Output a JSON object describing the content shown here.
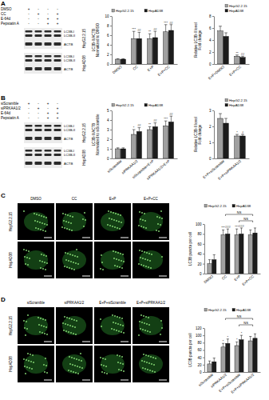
{
  "panels": [
    "A",
    "B",
    "C",
    "D"
  ],
  "blots": [
    {
      "conditions": [
        {
          "name": "DMSO",
          "signs": [
            "+",
            "-",
            "-",
            "-"
          ]
        },
        {
          "name": "CC",
          "signs": [
            "-",
            "+",
            "-",
            "+"
          ]
        },
        {
          "name": "E-64d",
          "signs": [
            "-",
            "-",
            "+",
            "+"
          ]
        },
        {
          "name": "Pepstatin A",
          "signs": [
            "-",
            "-",
            "+",
            "+"
          ]
        }
      ],
      "cells": [
        {
          "name": "HepG2.2.15",
          "bands": [
            "LC3B-I",
            "LC3B-II",
            "ACTB"
          ]
        },
        {
          "name": "HepAD38",
          "bands": [
            "LC3B-I",
            "LC3B-II",
            "ACTB"
          ]
        }
      ]
    },
    {
      "conditions": [
        {
          "name": "siScramble",
          "signs": [
            "+",
            "-",
            "+",
            "-"
          ]
        },
        {
          "name": "siPRKAA1/2",
          "signs": [
            "-",
            "+",
            "-",
            "+"
          ]
        },
        {
          "name": "E-64d",
          "signs": [
            "-",
            "-",
            "+",
            "+"
          ]
        },
        {
          "name": "Pepstatin A",
          "signs": [
            "-",
            "-",
            "+",
            "+"
          ]
        }
      ],
      "cells": [
        {
          "name": "HepG2.2.15",
          "bands": [
            "LC3B-I",
            "LC3B-II",
            "ACTB"
          ]
        },
        {
          "name": "HepAD38",
          "bands": [
            "LC3B-I",
            "LC3B-II",
            "ACTB"
          ]
        }
      ]
    }
  ],
  "micrographs": [
    {
      "columns": [
        "DMSO",
        "CC",
        "E+P",
        "E+P+CC"
      ],
      "rows": [
        "HepG2.2.15",
        "HepAD38"
      ]
    },
    {
      "columns": [
        "siScramble",
        "siPRKAA1/2",
        "E+P+siScramble",
        "E+P+siPRKAA1/2"
      ],
      "rows": [
        "HepG2.2.15",
        "HepAD38"
      ]
    }
  ],
  "chart_data": [
    {
      "type": "bar",
      "categories": [
        "DMSO",
        "CC",
        "E+P",
        "E+P+CC"
      ],
      "ylabel": [
        "LC3B-II/ACTB",
        "Normalized to DMSO"
      ],
      "ylim": [
        0,
        10
      ],
      "yticks": [
        0,
        2,
        4,
        6,
        8,
        10
      ],
      "legend": "top",
      "series": [
        {
          "name": "HepG2.2.15",
          "color": "#a0a0a0",
          "values": [
            1,
            5.3,
            5.3,
            6.7
          ],
          "errors": [
            0.1,
            1.5,
            1.0,
            1.5
          ]
        },
        {
          "name": "HepAD38",
          "color": "#1c1c1c",
          "values": [
            1,
            5.3,
            5.5,
            7.0
          ],
          "errors": [
            0.1,
            1.3,
            1.3,
            1.2
          ]
        }
      ],
      "annotations": [
        {
          "text": "***",
          "category": 1,
          "series": 0
        },
        {
          "text": "##",
          "category": 1,
          "series": 1
        },
        {
          "text": "**",
          "category": 2,
          "series": 0
        },
        {
          "text": "##",
          "category": 2,
          "series": 1
        },
        {
          "text": "***",
          "category": 3,
          "series": 0
        },
        {
          "text": "##",
          "category": 3,
          "series": 1
        }
      ]
    },
    {
      "type": "bar",
      "categories": [
        "E+P+DMSO",
        "E+P+CC"
      ],
      "ylabel": [
        "Relative LC3B-II level",
        "Fold change"
      ],
      "ylim": [
        0,
        8
      ],
      "yticks": [
        0,
        2,
        4,
        6,
        8
      ],
      "legend": "top",
      "series": [
        {
          "name": "HepG2.2.15",
          "color": "#a0a0a0",
          "values": [
            5.5,
            1.3
          ],
          "errors": [
            0.8,
            0.2
          ]
        },
        {
          "name": "HepAD38",
          "color": "#1c1c1c",
          "values": [
            4.6,
            1.1
          ],
          "errors": [
            0.6,
            0.2
          ]
        }
      ],
      "annotations": [
        {
          "text": "**",
          "category": 1,
          "series": 0
        },
        {
          "text": "##",
          "category": 1,
          "series": 1
        }
      ]
    },
    {
      "type": "bar",
      "categories": [
        "siScramble",
        "siPRKAA1/2",
        "siScramble+E+P",
        "siPRKAA1/2+E+P"
      ],
      "ylabel": [
        "LC3B-II/ACTB",
        "Normalized to siScramble"
      ],
      "ylim": [
        0,
        5
      ],
      "yticks": [
        0,
        1,
        2,
        3,
        4,
        5
      ],
      "legend": "top",
      "series": [
        {
          "name": "HepG2.2.15",
          "color": "#a0a0a0",
          "values": [
            1,
            2.5,
            3.0,
            3.4
          ],
          "errors": [
            0.1,
            0.5,
            0.3,
            0.5
          ]
        },
        {
          "name": "HepAD38",
          "color": "#1c1c1c",
          "values": [
            1,
            2.8,
            3.3,
            3.8
          ],
          "errors": [
            0.1,
            0.4,
            0.4,
            0.6
          ]
        }
      ],
      "annotations": [
        {
          "text": "*",
          "category": 1,
          "series": 0
        },
        {
          "text": "##",
          "category": 1,
          "series": 1
        },
        {
          "text": "**",
          "category": 2,
          "series": 0
        },
        {
          "text": "##",
          "category": 2,
          "series": 1
        },
        {
          "text": "***",
          "category": 3,
          "series": 0
        },
        {
          "text": "##",
          "category": 3,
          "series": 1
        }
      ]
    },
    {
      "type": "bar",
      "categories": [
        "E+P+siScramble",
        "E+P+siPRKAA1/2"
      ],
      "ylabel": [
        "Relative LC3B-II level",
        "Fold change"
      ],
      "ylim": [
        0,
        3
      ],
      "yticks": [
        0,
        1,
        2,
        3
      ],
      "legend": "top",
      "series": [
        {
          "name": "HepG2.2.15",
          "color": "#a0a0a0",
          "values": [
            2.5,
            1.4
          ],
          "errors": [
            0.3,
            0.1
          ]
        },
        {
          "name": "HepAD38",
          "color": "#1c1c1c",
          "values": [
            2.2,
            1.4
          ],
          "errors": [
            0.3,
            0.1
          ]
        }
      ],
      "annotations": [
        {
          "text": "*",
          "category": 1,
          "series": 0
        },
        {
          "text": "#",
          "category": 1,
          "series": 1
        }
      ]
    },
    {
      "type": "bar",
      "categories": [
        "DMSO",
        "CC",
        "E+P",
        "E+P+CC"
      ],
      "ylabel": [
        "LC3B puncta per cell"
      ],
      "ylim": [
        0,
        100
      ],
      "yticks": [
        0,
        20,
        40,
        60,
        80,
        100
      ],
      "legend": "top",
      "series": [
        {
          "name": "HepG2.2.15",
          "color": "#a0a0a0",
          "values": [
            20,
            78,
            78,
            78
          ],
          "errors": [
            8,
            10,
            12,
            10
          ]
        },
        {
          "name": "HepAD38",
          "color": "#1c1c1c",
          "values": [
            28,
            80,
            80,
            82
          ],
          "errors": [
            10,
            10,
            12,
            10
          ]
        }
      ],
      "annotations": [
        {
          "text": "***",
          "category": 1,
          "series": 0
        },
        {
          "text": "###",
          "category": 1,
          "series": 1
        },
        {
          "text": "***",
          "category": 2,
          "series": 0
        },
        {
          "text": "###",
          "category": 2,
          "series": 1
        },
        {
          "text": "NS",
          "span": [
            1,
            3
          ]
        },
        {
          "text": "NS",
          "span": [
            2,
            3
          ]
        }
      ]
    },
    {
      "type": "bar",
      "categories": [
        "siScramble",
        "siPRKAA1/2",
        "E+P+siScramble",
        "E+P+siPRKAA1/2"
      ],
      "ylabel": [
        "LC3B puncta per cell"
      ],
      "ylim": [
        0,
        120
      ],
      "yticks": [
        0,
        20,
        40,
        60,
        80,
        100,
        120
      ],
      "legend": "top",
      "series": [
        {
          "name": "HepG2.2.15",
          "color": "#a0a0a0",
          "values": [
            22,
            68,
            72,
            85
          ],
          "errors": [
            8,
            10,
            10,
            12
          ]
        },
        {
          "name": "HepAD38",
          "color": "#1c1c1c",
          "values": [
            28,
            78,
            88,
            92
          ],
          "errors": [
            10,
            12,
            12,
            12
          ]
        }
      ],
      "annotations": [
        {
          "text": "*",
          "category": 1,
          "series": 0
        },
        {
          "text": "*",
          "category": 1,
          "series": 1
        },
        {
          "text": "*",
          "category": 2,
          "series": 0
        },
        {
          "text": "*",
          "category": 2,
          "series": 1
        },
        {
          "text": "NS",
          "span": [
            1,
            3
          ]
        },
        {
          "text": "NS",
          "span": [
            2,
            3
          ]
        }
      ]
    }
  ]
}
